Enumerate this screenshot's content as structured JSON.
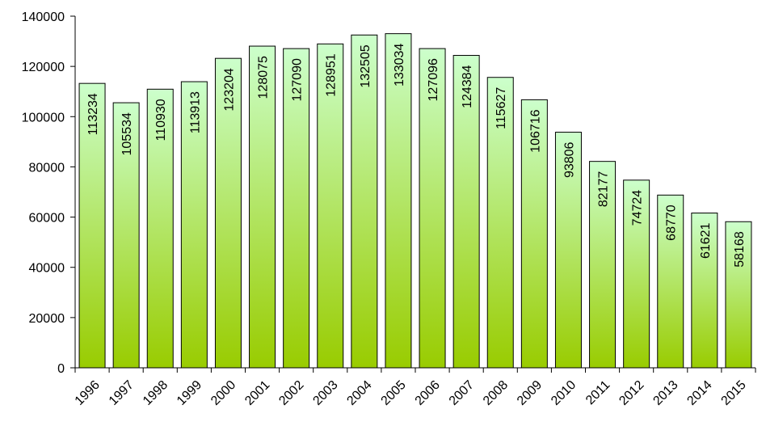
{
  "chart_data": {
    "type": "bar",
    "categories": [
      "1996",
      "1997",
      "1998",
      "1999",
      "2000",
      "2001",
      "2002",
      "2003",
      "2004",
      "2005",
      "2006",
      "2007",
      "2008",
      "2009",
      "2010",
      "2011",
      "2012",
      "2013",
      "2014",
      "2015"
    ],
    "values": [
      113234,
      105534,
      110930,
      113913,
      123204,
      128075,
      127090,
      128951,
      132505,
      133034,
      127096,
      124384,
      115627,
      106716,
      93806,
      82177,
      74724,
      68770,
      61621,
      58168
    ],
    "color_top": "#ccffcc",
    "color_bottom": "#99cc00",
    "ylim": [
      0,
      140000
    ],
    "yticks": [
      0,
      20000,
      40000,
      60000,
      80000,
      100000,
      120000,
      140000
    ],
    "grid": false
  }
}
